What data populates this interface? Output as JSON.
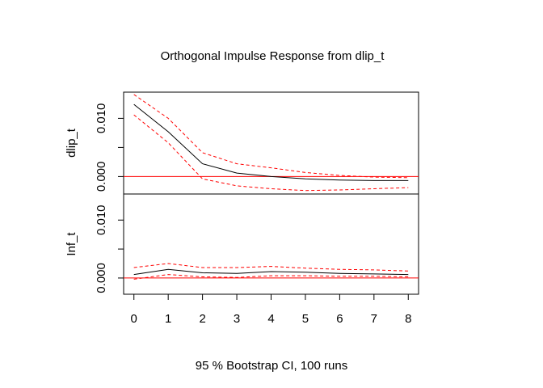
{
  "chart_data": {
    "type": "line",
    "title": "Orthogonal Impulse Response from dlip_t",
    "xlabel": "95 % Bootstrap CI,  100 runs",
    "x": [
      0,
      1,
      2,
      3,
      4,
      5,
      6,
      7,
      8
    ],
    "xlim": [
      -0.3,
      8.3
    ],
    "xticks": [
      "0",
      "1",
      "2",
      "3",
      "4",
      "5",
      "6",
      "7",
      "8"
    ],
    "zero_line_color": "#ff0000",
    "response_color": "#000000",
    "ci_color": "#ff0000",
    "panels": [
      {
        "ylabel": "dlip_t",
        "ylim": [
          -0.003,
          0.0145
        ],
        "yticks": [
          0.0,
          0.01
        ],
        "ytick_labels": [
          "0.000",
          "0.010"
        ],
        "minor_yticks": [
          0.005
        ],
        "series": [
          {
            "role": "response",
            "values": [
              0.0124,
              0.0077,
              0.0022,
              0.0006,
              0.0,
              -0.0004,
              -0.0006,
              -0.0007,
              -0.0007
            ]
          },
          {
            "role": "upper",
            "values": [
              0.0141,
              0.01,
              0.0041,
              0.0022,
              0.0015,
              0.0007,
              0.0002,
              -0.0001,
              -0.0002
            ]
          },
          {
            "role": "lower",
            "values": [
              0.0106,
              0.0058,
              -0.0004,
              -0.0016,
              -0.0021,
              -0.0024,
              -0.0023,
              -0.0021,
              -0.0019
            ]
          }
        ]
      },
      {
        "ylabel": "Inf_t",
        "ylim": [
          -0.0028,
          0.0145
        ],
        "yticks": [
          0.0,
          0.01
        ],
        "ytick_labels": [
          "0.000",
          "0.010"
        ],
        "minor_yticks": [
          0.005
        ],
        "series": [
          {
            "role": "response",
            "values": [
              0.0006,
              0.0015,
              0.0009,
              0.0008,
              0.0011,
              0.001,
              0.0008,
              0.0007,
              0.0006
            ]
          },
          {
            "role": "upper",
            "values": [
              0.0018,
              0.0025,
              0.0018,
              0.0018,
              0.002,
              0.0017,
              0.0015,
              0.0014,
              0.0012
            ]
          },
          {
            "role": "lower",
            "values": [
              -0.0002,
              0.0006,
              0.0002,
              0.0001,
              0.0004,
              0.0004,
              0.0003,
              0.0003,
              0.0002
            ]
          }
        ]
      }
    ]
  }
}
